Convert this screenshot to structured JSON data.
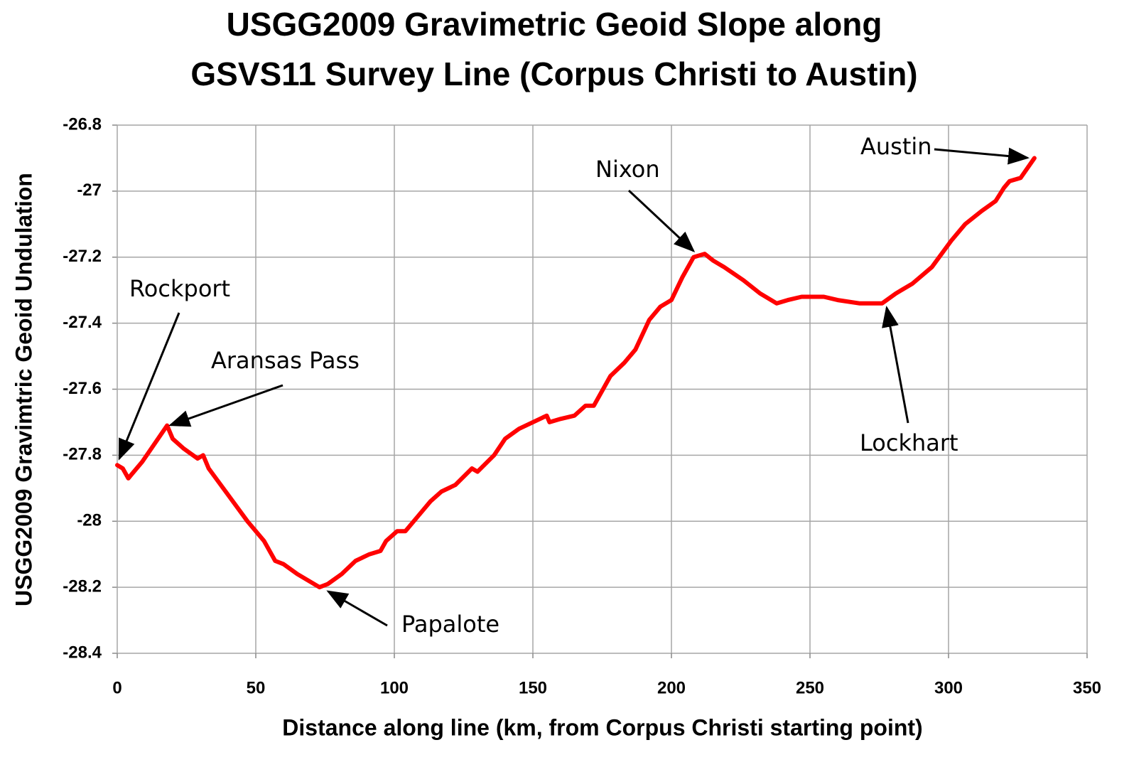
{
  "chart_data": {
    "type": "line",
    "title": [
      "USGG2009 Gravimetric Geoid Slope along",
      "GSVS11 Survey Line (Corpus Christi to Austin)"
    ],
    "x_label": "Distance along line (km, from Corpus Christi starting point)",
    "y_label": "USGG2009 Gravimtric Geoid Undulation",
    "xlim": [
      0,
      350
    ],
    "xticks": [
      0,
      50,
      100,
      150,
      200,
      250,
      300,
      350
    ],
    "ylim": [
      -28.4,
      -26.8
    ],
    "yticks": [
      -26.8,
      -27,
      -27.2,
      -27.4,
      -27.6,
      -27.8,
      -28,
      -28.2,
      -28.4
    ],
    "grid": true,
    "annotations": [
      "Rockport",
      "Aransas Pass",
      "Papalote",
      "Nixon",
      "Lockhart",
      "Austin"
    ],
    "series": [
      {
        "color": "#ff0000",
        "x": [
          0,
          2,
          4,
          5,
          9,
          18,
          20,
          24,
          29,
          31,
          33,
          40,
          47,
          53,
          57,
          60,
          65,
          73,
          76,
          81,
          86,
          91,
          95,
          97,
          101,
          104,
          109,
          113,
          117,
          122,
          128,
          130,
          136,
          140,
          145,
          155,
          156,
          160,
          165,
          169,
          172,
          178,
          183,
          187,
          192,
          196,
          200,
          204,
          208,
          212,
          215,
          219,
          226,
          232,
          238,
          242,
          247,
          255,
          260,
          268,
          276,
          281,
          287,
          294,
          301,
          306,
          312,
          317,
          320,
          322,
          326,
          331
        ],
        "values": [
          -27.83,
          -27.84,
          -27.87,
          -27.86,
          -27.82,
          -27.71,
          -27.75,
          -27.78,
          -27.81,
          -27.8,
          -27.84,
          -27.92,
          -28.0,
          -28.06,
          -28.12,
          -28.13,
          -28.16,
          -28.2,
          -28.19,
          -28.16,
          -28.12,
          -28.1,
          -28.09,
          -28.06,
          -28.03,
          -28.03,
          -27.98,
          -27.94,
          -27.91,
          -27.89,
          -27.84,
          -27.85,
          -27.8,
          -27.75,
          -27.72,
          -27.68,
          -27.7,
          -27.69,
          -27.68,
          -27.65,
          -27.65,
          -27.56,
          -27.52,
          -27.48,
          -27.39,
          -27.35,
          -27.33,
          -27.26,
          -27.2,
          -27.19,
          -27.21,
          -27.23,
          -27.27,
          -27.31,
          -27.34,
          -27.33,
          -27.32,
          -27.32,
          -27.33,
          -27.34,
          -27.34,
          -27.31,
          -27.28,
          -27.23,
          -27.15,
          -27.1,
          -27.06,
          -27.03,
          -26.99,
          -26.97,
          -26.96,
          -26.9
        ]
      }
    ]
  }
}
